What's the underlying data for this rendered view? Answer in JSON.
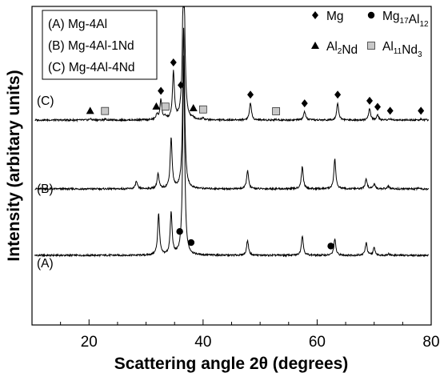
{
  "chart_data": {
    "type": "line",
    "xlabel": "Scattering angle 2θ (degrees)",
    "ylabel": "Intensity (arbitary units)",
    "xlim": [
      10,
      80
    ],
    "xticks": [
      20,
      40,
      60,
      80
    ],
    "xtick_labels": [
      "20",
      "40",
      "60",
      "80"
    ],
    "grid": false,
    "sample_legend": {
      "placement": "top-left",
      "entries": [
        "(A) Mg-4Al",
        "(B) Mg-4Al-1Nd",
        "(C) Mg-4Al-4Nd"
      ]
    },
    "phase_legend": {
      "placement": "top-right",
      "entries": [
        {
          "marker": "diamond",
          "base": "Mg",
          "sub": ""
        },
        {
          "marker": "circle",
          "base": "Mg",
          "sub": "17",
          "base2": "Al",
          "sub2": "12"
        },
        {
          "marker": "triangle",
          "base": "Al",
          "sub": "2",
          "base2": "Nd",
          "sub2": ""
        },
        {
          "marker": "square",
          "base": "Al",
          "sub": "11",
          "base2": "Nd",
          "sub2": "3"
        }
      ]
    },
    "series": [
      {
        "name": "(A)",
        "peaks": [
          {
            "x": 32.2,
            "h": 0.33
          },
          {
            "x": 34.4,
            "h": 0.34
          },
          {
            "x": 36.6,
            "h": 1.6
          },
          {
            "x": 47.8,
            "h": 0.12
          },
          {
            "x": 57.4,
            "h": 0.16
          },
          {
            "x": 63.1,
            "h": 0.13
          },
          {
            "x": 68.6,
            "h": 0.1
          },
          {
            "x": 70.0,
            "h": 0.06
          },
          {
            "x": 72.5,
            "h": 0.012
          }
        ],
        "markers": [
          {
            "x": 35.9,
            "type": "circle"
          },
          {
            "x": 37.9,
            "type": "circle"
          },
          {
            "x": 62.4,
            "type": "circle"
          }
        ]
      },
      {
        "name": "(B)",
        "peaks": [
          {
            "x": 28.3,
            "h": 0.06
          },
          {
            "x": 32.1,
            "h": 0.12
          },
          {
            "x": 34.4,
            "h": 0.41
          },
          {
            "x": 36.6,
            "h": 1.3
          },
          {
            "x": 47.8,
            "h": 0.15
          },
          {
            "x": 57.4,
            "h": 0.18
          },
          {
            "x": 63.1,
            "h": 0.24
          },
          {
            "x": 68.6,
            "h": 0.08
          },
          {
            "x": 70.0,
            "h": 0.04
          },
          {
            "x": 72.5,
            "h": 0.02
          },
          {
            "x": 77.8,
            "h": 0.01
          }
        ],
        "markers": []
      },
      {
        "name": "(C)",
        "peaks": [
          {
            "x": 20.2,
            "h": 0.01
          },
          {
            "x": 22.8,
            "h": 0.008
          },
          {
            "x": 31.9,
            "h": 0.04
          },
          {
            "x": 32.6,
            "h": 0.16
          },
          {
            "x": 33.4,
            "h": 0.02
          },
          {
            "x": 34.8,
            "h": 0.38
          },
          {
            "x": 36.6,
            "h": 1.5
          },
          {
            "x": 38.3,
            "h": 0.01
          },
          {
            "x": 40.0,
            "h": 0.015
          },
          {
            "x": 48.3,
            "h": 0.14
          },
          {
            "x": 52.8,
            "h": 0.006
          },
          {
            "x": 57.8,
            "h": 0.07
          },
          {
            "x": 63.6,
            "h": 0.14
          },
          {
            "x": 69.2,
            "h": 0.09
          },
          {
            "x": 70.6,
            "h": 0.04
          },
          {
            "x": 72.8,
            "h": 0.01
          },
          {
            "x": 78.2,
            "h": 0.01
          }
        ],
        "markers": [
          {
            "x": 20.2,
            "type": "triangle"
          },
          {
            "x": 22.8,
            "type": "square"
          },
          {
            "x": 31.8,
            "type": "triangle"
          },
          {
            "x": 32.6,
            "type": "diamond"
          },
          {
            "x": 33.4,
            "type": "square"
          },
          {
            "x": 34.8,
            "type": "diamond"
          },
          {
            "x": 36.1,
            "type": "diamond"
          },
          {
            "x": 38.3,
            "type": "triangle"
          },
          {
            "x": 40.0,
            "type": "square"
          },
          {
            "x": 48.3,
            "type": "diamond"
          },
          {
            "x": 52.8,
            "type": "square"
          },
          {
            "x": 57.8,
            "type": "diamond"
          },
          {
            "x": 63.6,
            "type": "diamond"
          },
          {
            "x": 69.2,
            "type": "diamond"
          },
          {
            "x": 70.6,
            "type": "diamond"
          },
          {
            "x": 72.8,
            "type": "diamond"
          },
          {
            "x": 78.2,
            "type": "diamond"
          }
        ]
      }
    ]
  }
}
